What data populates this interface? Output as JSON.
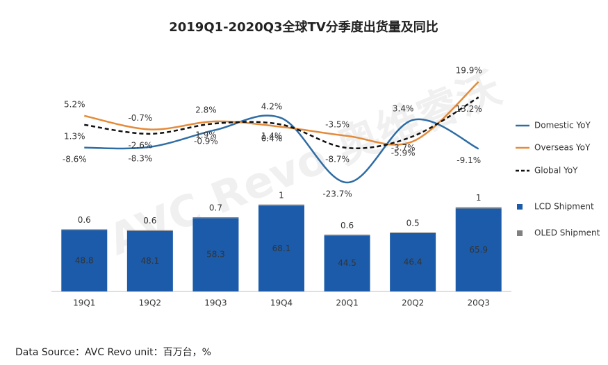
{
  "chart_data": {
    "type": "combo",
    "title": "2019Q1-2020Q3全球TV分季度出货量及同比",
    "footnote": "Data Source：AVC Revo  unit：百万台，%",
    "watermark": "AVC Revo 奥维睿沃",
    "categories": [
      "19Q1",
      "19Q2",
      "19Q3",
      "19Q4",
      "20Q1",
      "20Q2",
      "20Q3"
    ],
    "ylim": [
      0,
      80
    ],
    "y2lim": [
      -30,
      25
    ],
    "stacked": true,
    "legend": "right",
    "series": [
      {
        "name": "Domestic YoY",
        "type": "line",
        "axis": "y2",
        "color": "#2e6ca4",
        "values": [
          -8.6,
          -8.3,
          -0.9,
          4.2,
          -23.7,
          3.4,
          -9.1
        ],
        "value_labels": [
          "-8.6%",
          "-8.3%",
          "-0.9%",
          "4.2%",
          "-23.7%",
          "3.4%",
          "-9.1%"
        ]
      },
      {
        "name": "Overseas YoY",
        "type": "line",
        "axis": "y2",
        "color": "#e38b3a",
        "values": [
          5.2,
          -0.7,
          2.8,
          0.4,
          -3.5,
          -5.9,
          19.9
        ],
        "value_labels": [
          "5.2%",
          "-0.7%",
          "2.8%",
          "0.4%",
          "-3.5%",
          "-5.9%",
          "19.9%"
        ]
      },
      {
        "name": "Global YoY",
        "type": "line",
        "axis": "y2",
        "color": "#111111",
        "dashed": true,
        "values": [
          1.3,
          -2.6,
          1.9,
          1.4,
          -8.7,
          -3.7,
          13.2
        ],
        "value_labels": [
          "1.3%",
          "-2.6%",
          "1.9%",
          "1.4%",
          "-8.7%",
          "-3.7%",
          "13.2%"
        ]
      },
      {
        "name": "LCD Shipment",
        "type": "bar",
        "color": "#1c5ba9",
        "values": [
          48.8,
          48.1,
          58.3,
          68.1,
          44.5,
          46.4,
          65.9
        ]
      },
      {
        "name": "OLED Shipment",
        "type": "bar",
        "color": "#808080",
        "values": [
          0.6,
          0.6,
          0.7,
          1.0,
          0.6,
          0.5,
          1.0
        ]
      }
    ]
  }
}
